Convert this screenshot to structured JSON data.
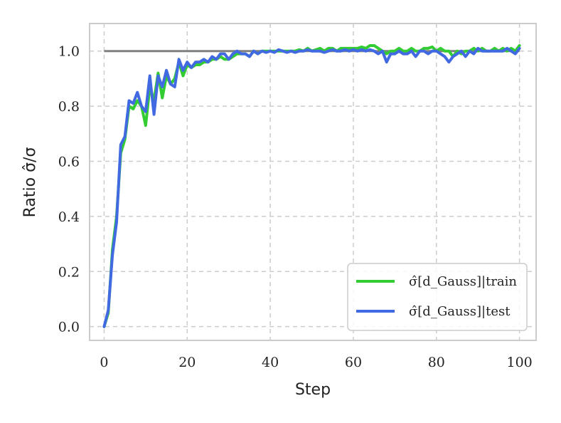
{
  "chart_data": {
    "type": "line",
    "xlabel": "Step",
    "ylabel": "Ratio σ̂/σ",
    "xlim": [
      -3.5,
      104
    ],
    "ylim": [
      -0.05,
      1.1
    ],
    "xticks": [
      0,
      20,
      40,
      60,
      80,
      100
    ],
    "yticks": [
      0.0,
      0.2,
      0.4,
      0.6,
      0.8,
      1.0
    ],
    "xtick_labels": [
      "0",
      "20",
      "40",
      "60",
      "80",
      "100"
    ],
    "ytick_labels": [
      "0.0",
      "0.2",
      "0.4",
      "0.6",
      "0.8",
      "1.0"
    ],
    "grid": true,
    "legend_position": "bottom-right",
    "reference_line": {
      "y": 1.0,
      "x_start": 0,
      "x_end": 100,
      "color": "#808080"
    },
    "series": [
      {
        "name": "σ̂[d_Gauss]|train",
        "color": "#33cc33",
        "x": [
          0,
          1,
          2,
          3,
          4,
          5,
          6,
          7,
          8,
          9,
          10,
          11,
          12,
          13,
          14,
          15,
          16,
          17,
          18,
          19,
          20,
          21,
          22,
          23,
          24,
          25,
          26,
          27,
          28,
          29,
          30,
          31,
          32,
          33,
          34,
          35,
          36,
          37,
          38,
          39,
          40,
          41,
          42,
          43,
          44,
          45,
          46,
          47,
          48,
          49,
          50,
          51,
          52,
          53,
          54,
          55,
          56,
          57,
          58,
          59,
          60,
          61,
          62,
          63,
          64,
          65,
          66,
          67,
          68,
          69,
          70,
          71,
          72,
          73,
          74,
          75,
          76,
          77,
          78,
          79,
          80,
          81,
          82,
          83,
          84,
          85,
          86,
          87,
          88,
          89,
          90,
          91,
          92,
          93,
          94,
          95,
          96,
          97,
          98,
          99,
          100
        ],
        "y": [
          0.0,
          0.05,
          0.28,
          0.4,
          0.63,
          0.68,
          0.8,
          0.79,
          0.82,
          0.8,
          0.73,
          0.87,
          0.82,
          0.92,
          0.83,
          0.91,
          0.88,
          0.9,
          0.96,
          0.91,
          0.95,
          0.94,
          0.95,
          0.95,
          0.96,
          0.96,
          0.97,
          0.97,
          0.98,
          0.97,
          0.97,
          0.98,
          0.99,
          0.99,
          0.99,
          0.98,
          1.0,
          0.99,
          1.0,
          1.0,
          1.0,
          1.0,
          1.0,
          1.0,
          1.0,
          1.0,
          1.0,
          1.005,
          1.0,
          1.01,
          1.0,
          1.005,
          1.01,
          1.0,
          1.01,
          1.01,
          1.0,
          1.01,
          1.01,
          1.01,
          1.01,
          1.01,
          1.015,
          1.01,
          1.02,
          1.02,
          1.01,
          1.0,
          0.99,
          1.0,
          1.0,
          1.01,
          1.0,
          1.0,
          1.01,
          1.0,
          1.0,
          1.01,
          1.01,
          1.015,
          1.0,
          1.01,
          1.0,
          1.0,
          0.98,
          1.0,
          0.99,
          1.0,
          1.0,
          1.01,
          1.0,
          1.01,
          1.0,
          1.0,
          1.01,
          1.0,
          1.01,
          1.0,
          1.01,
          1.0,
          1.02
        ]
      },
      {
        "name": "σ̂[d_Gauss]|test",
        "color": "#4169e1",
        "x": [
          0,
          1,
          2,
          3,
          4,
          5,
          6,
          7,
          8,
          9,
          10,
          11,
          12,
          13,
          14,
          15,
          16,
          17,
          18,
          19,
          20,
          21,
          22,
          23,
          24,
          25,
          26,
          27,
          28,
          29,
          30,
          31,
          32,
          33,
          34,
          35,
          36,
          37,
          38,
          39,
          40,
          41,
          42,
          43,
          44,
          45,
          46,
          47,
          48,
          49,
          50,
          51,
          52,
          53,
          54,
          55,
          56,
          57,
          58,
          59,
          60,
          61,
          62,
          63,
          64,
          65,
          66,
          67,
          68,
          69,
          70,
          71,
          72,
          73,
          74,
          75,
          76,
          77,
          78,
          79,
          80,
          81,
          82,
          83,
          84,
          85,
          86,
          87,
          88,
          89,
          90,
          91,
          92,
          93,
          94,
          95,
          96,
          97,
          98,
          99,
          100
        ],
        "y": [
          0.0,
          0.06,
          0.26,
          0.38,
          0.66,
          0.69,
          0.82,
          0.81,
          0.85,
          0.8,
          0.78,
          0.91,
          0.77,
          0.91,
          0.87,
          0.93,
          0.88,
          0.87,
          0.97,
          0.93,
          0.96,
          0.94,
          0.96,
          0.96,
          0.97,
          0.96,
          0.98,
          0.97,
          0.99,
          0.99,
          0.97,
          0.99,
          1.0,
          0.99,
          0.99,
          0.98,
          1.0,
          0.99,
          1.0,
          0.995,
          1.0,
          0.995,
          1.005,
          1.0,
          0.995,
          1.0,
          0.995,
          1.0,
          1.0,
          1.005,
          1.0,
          1.0,
          1.0,
          0.995,
          1.0,
          1.005,
          1.0,
          1.0,
          1.005,
          1.0,
          1.005,
          1.0,
          1.005,
          1.0,
          1.005,
          1.0,
          0.99,
          1.0,
          0.96,
          0.99,
          0.99,
          1.0,
          0.99,
          0.99,
          1.0,
          0.98,
          1.0,
          1.0,
          0.99,
          1.0,
          1.0,
          0.99,
          0.98,
          0.96,
          0.98,
          0.99,
          1.0,
          0.98,
          1.0,
          0.99,
          1.01,
          1.0,
          1.0,
          1.0,
          1.0,
          1.0,
          1.0,
          1.01,
          1.0,
          0.99,
          1.01
        ]
      }
    ]
  }
}
